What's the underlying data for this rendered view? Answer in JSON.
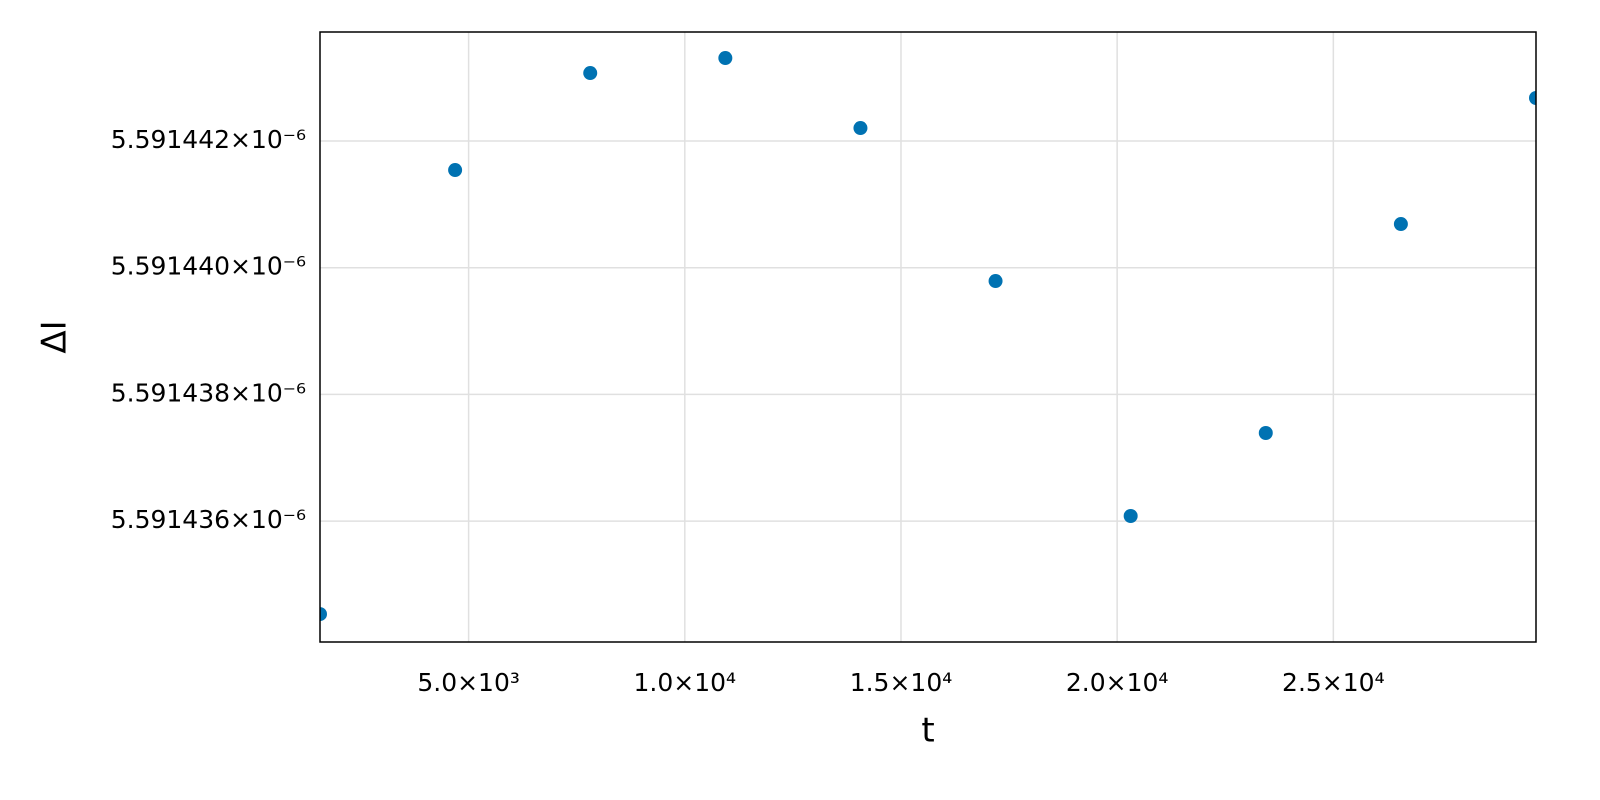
{
  "chart_data": {
    "type": "scatter",
    "x_label": "t",
    "y_label": "ΔI",
    "x": [
      1562.5,
      4687.5,
      7812.5,
      10937.5,
      14062.5,
      17187.5,
      20312.5,
      23437.5,
      26562.5,
      29687.5
    ],
    "series": [
      {
        "color": "#0072b2",
        "values": [
          5.591434533e-06,
          5.591441542e-06,
          5.591443073e-06,
          5.59144331e-06,
          5.591442205e-06,
          5.59143979e-06,
          5.591436081e-06,
          5.591437391e-06,
          5.59144069e-06,
          5.591442679e-06
        ]
      }
    ],
    "xlim": [
      1562.5,
      29687.5
    ],
    "ylim": [
      5.591434092e-06,
      5.591443721e-06
    ],
    "xticks": [
      {
        "value": 5000,
        "label": "5.0×10³"
      },
      {
        "value": 10000,
        "label": "1.0×10⁴"
      },
      {
        "value": 15000,
        "label": "1.5×10⁴"
      },
      {
        "value": 20000,
        "label": "2.0×10⁴"
      },
      {
        "value": 25000,
        "label": "2.5×10⁴"
      }
    ],
    "yticks": [
      {
        "value": 5.591436e-06,
        "label": "5.591436×10⁻⁶"
      },
      {
        "value": 5.591438e-06,
        "label": "5.591438×10⁻⁶"
      },
      {
        "value": 5.59144e-06,
        "label": "5.591440×10⁻⁶"
      },
      {
        "value": 5.591442e-06,
        "label": "5.591442×10⁻⁶"
      }
    ],
    "grid": true
  }
}
